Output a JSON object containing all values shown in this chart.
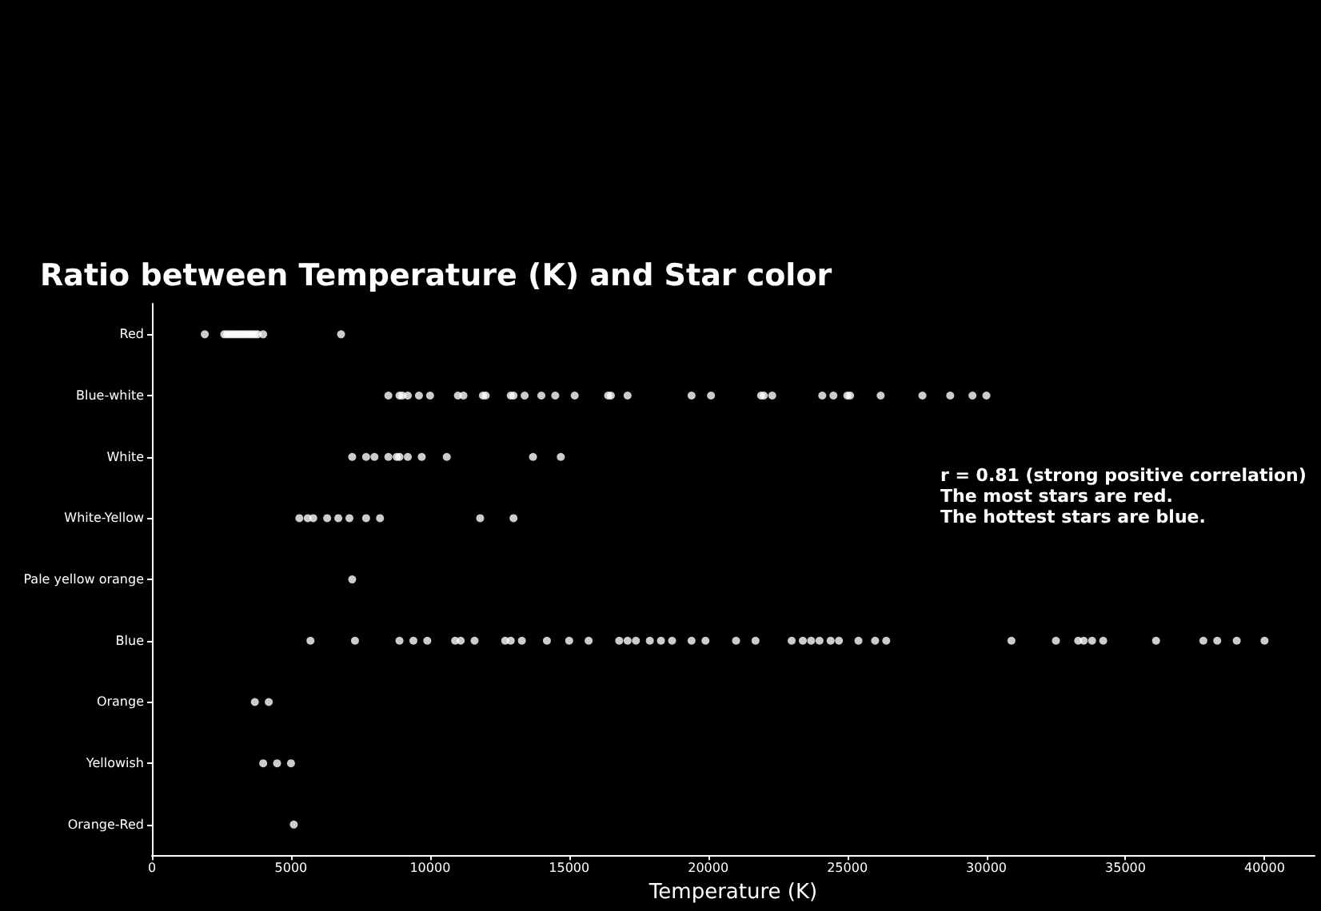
{
  "chart_data": {
    "type": "scatter",
    "title": "Ratio between Temperature (K) and Star color",
    "xlabel": "Temperature (K)",
    "orientation": "horizontal",
    "categories": [
      "Red",
      "Blue-white",
      "White",
      "White-Yellow",
      "Pale yellow orange",
      "Blue",
      "Orange",
      "Yellowish",
      "Orange-Red"
    ],
    "series": [
      {
        "color": "#ffffff",
        "x": [
          "Red",
          "Red",
          "Red",
          "Red",
          "Red",
          "Red",
          "Red",
          "Red",
          "Red",
          "Red",
          "Red",
          "Red",
          "Red",
          "Red",
          "Red",
          "Red",
          "Blue-white",
          "Blue-white",
          "Blue-white",
          "Blue-white",
          "Blue-white",
          "Blue-white",
          "Blue-white",
          "Blue-white",
          "Blue-white",
          "Blue-white",
          "Blue-white",
          "Blue-white",
          "Blue-white",
          "Blue-white",
          "Blue-white",
          "Blue-white",
          "Blue-white",
          "Blue-white",
          "Blue-white",
          "Blue-white",
          "Blue-white",
          "Blue-white",
          "Blue-white",
          "Blue-white",
          "Blue-white",
          "Blue-white",
          "Blue-white",
          "Blue-white",
          "Blue-white",
          "Blue-white",
          "Blue-white",
          "Blue-white",
          "Blue-white",
          "White",
          "White",
          "White",
          "White",
          "White",
          "White",
          "White",
          "White",
          "White",
          "White",
          "White",
          "White-Yellow",
          "White-Yellow",
          "White-Yellow",
          "White-Yellow",
          "White-Yellow",
          "White-Yellow",
          "White-Yellow",
          "White-Yellow",
          "White-Yellow",
          "White-Yellow",
          "Pale yellow orange",
          "Blue",
          "Blue",
          "Blue",
          "Blue",
          "Blue",
          "Blue",
          "Blue",
          "Blue",
          "Blue",
          "Blue",
          "Blue",
          "Blue",
          "Blue",
          "Blue",
          "Blue",
          "Blue",
          "Blue",
          "Blue",
          "Blue",
          "Blue",
          "Blue",
          "Blue",
          "Blue",
          "Blue",
          "Blue",
          "Blue",
          "Blue",
          "Blue",
          "Blue",
          "Blue",
          "Blue",
          "Blue",
          "Blue",
          "Blue",
          "Blue",
          "Blue",
          "Blue",
          "Blue",
          "Blue",
          "Blue",
          "Blue",
          "Blue",
          "Blue",
          "Blue",
          "Orange",
          "Orange",
          "Yellowish",
          "Yellowish",
          "Yellowish",
          "Orange-Red"
        ],
        "values": [
          1900,
          2600,
          2700,
          2800,
          2900,
          3000,
          3100,
          3200,
          3300,
          3400,
          3500,
          3600,
          3700,
          3800,
          4000,
          6800,
          8500,
          8900,
          9000,
          9200,
          9600,
          10000,
          11000,
          11200,
          11900,
          12000,
          12900,
          13000,
          13400,
          14000,
          14500,
          15200,
          16400,
          16500,
          17100,
          19400,
          20100,
          21900,
          22000,
          22300,
          24100,
          24500,
          25000,
          25100,
          26200,
          27700,
          28700,
          29500,
          30000,
          7200,
          7700,
          8000,
          8500,
          8800,
          8900,
          9200,
          9700,
          10600,
          13700,
          14700,
          5300,
          5600,
          5800,
          6300,
          6700,
          7100,
          7700,
          8200,
          11800,
          13000,
          7200,
          5700,
          7300,
          8900,
          9400,
          9900,
          10900,
          11100,
          11600,
          12700,
          12900,
          13300,
          14200,
          15000,
          15700,
          16800,
          17100,
          17400,
          17900,
          18300,
          18700,
          19400,
          19900,
          21000,
          21700,
          23000,
          23400,
          23700,
          24000,
          24400,
          24700,
          25400,
          26000,
          26400,
          30900,
          32500,
          33300,
          33500,
          33800,
          34200,
          36100,
          37800,
          38300,
          39000,
          40000,
          3700,
          4200,
          4000,
          4500,
          5000,
          5100
        ]
      }
    ],
    "xlim": [
      0,
      41800
    ],
    "xticks": [
      0,
      5000,
      10000,
      15000,
      20000,
      25000,
      30000,
      35000,
      40000
    ],
    "marker": "circle",
    "annotations": [
      "r = 0.81 (strong positive correlation)",
      "The most stars are red.",
      "The hottest stars are blue."
    ]
  }
}
